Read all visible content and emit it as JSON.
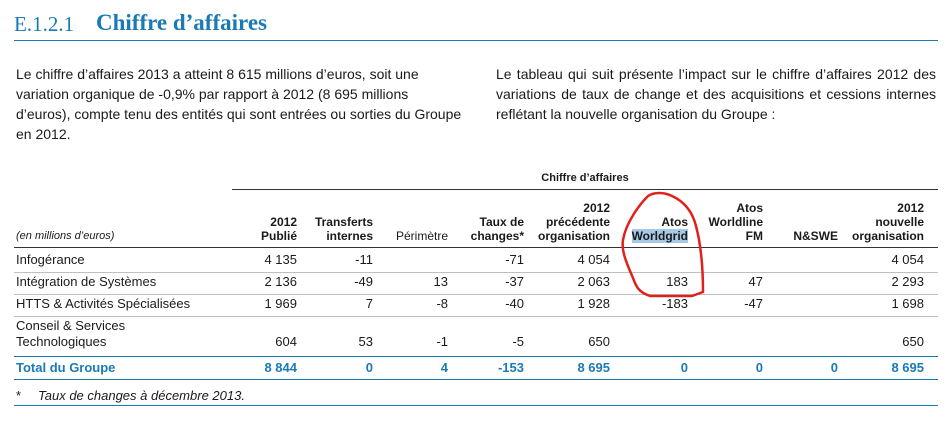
{
  "section": {
    "number": "E.1.2.1",
    "title": "Chiffre d’affaires"
  },
  "paragraphs": {
    "left": "Le chiffre d’affaires 2013 a atteint 8 615 millions d’euros, soit une variation organique de -0,9% par rapport à 2012 (8 695 millions d’euros), compte tenu des entités qui sont entrées ou sorties du Groupe en 2012.",
    "right": "Le tableau qui suit présente l’impact sur le chiffre d’affaires 2012 des variations de taux de change et des acquisitions et cessions internes reflétant la nouvelle organisation du Groupe :"
  },
  "table": {
    "caption": "Chiffre d’affaires",
    "unit_label": "(en millions d’euros)",
    "columns": [
      [
        "2012",
        "Publié"
      ],
      [
        "Transferts",
        "internes"
      ],
      [
        "Périmètre"
      ],
      [
        "Taux de",
        "changes*"
      ],
      [
        "2012",
        "précédente",
        "organisation"
      ],
      [
        "Atos",
        "Worldgrid"
      ],
      [
        "Atos",
        "Worldline",
        "FM"
      ],
      [
        "N&SWE"
      ],
      [
        "2012",
        "nouvelle",
        "organisation"
      ]
    ],
    "rows": [
      {
        "label": [
          "Infogérance"
        ],
        "values": [
          "4 135",
          "-11",
          "",
          "-71",
          "4 054",
          "",
          "",
          "",
          "4 054"
        ]
      },
      {
        "label": [
          "Intégration de Systèmes"
        ],
        "values": [
          "2 136",
          "-49",
          "13",
          "-37",
          "2 063",
          "183",
          "47",
          "",
          "2 293"
        ]
      },
      {
        "label": [
          "HTTS & Activités Spécialisées"
        ],
        "values": [
          "1 969",
          "7",
          "-8",
          "-40",
          "1 928",
          "-183",
          "-47",
          "",
          "1 698"
        ]
      },
      {
        "label": [
          "Conseil & Services",
          "Technologiques"
        ],
        "values": [
          "604",
          "53",
          "-1",
          "-5",
          "650",
          "",
          "",
          "",
          "650"
        ]
      }
    ],
    "total": {
      "label": "Total du Groupe",
      "values": [
        "8 844",
        "0",
        "4",
        "-153",
        "8 695",
        "0",
        "0",
        "0",
        "8 695"
      ]
    },
    "footnote": {
      "marker": "*",
      "text": "Taux de changes à décembre 2013."
    }
  },
  "colors": {
    "accent": "#1a7ab5",
    "highlight": "#a8c8e8",
    "annotation": "#e0201b"
  }
}
